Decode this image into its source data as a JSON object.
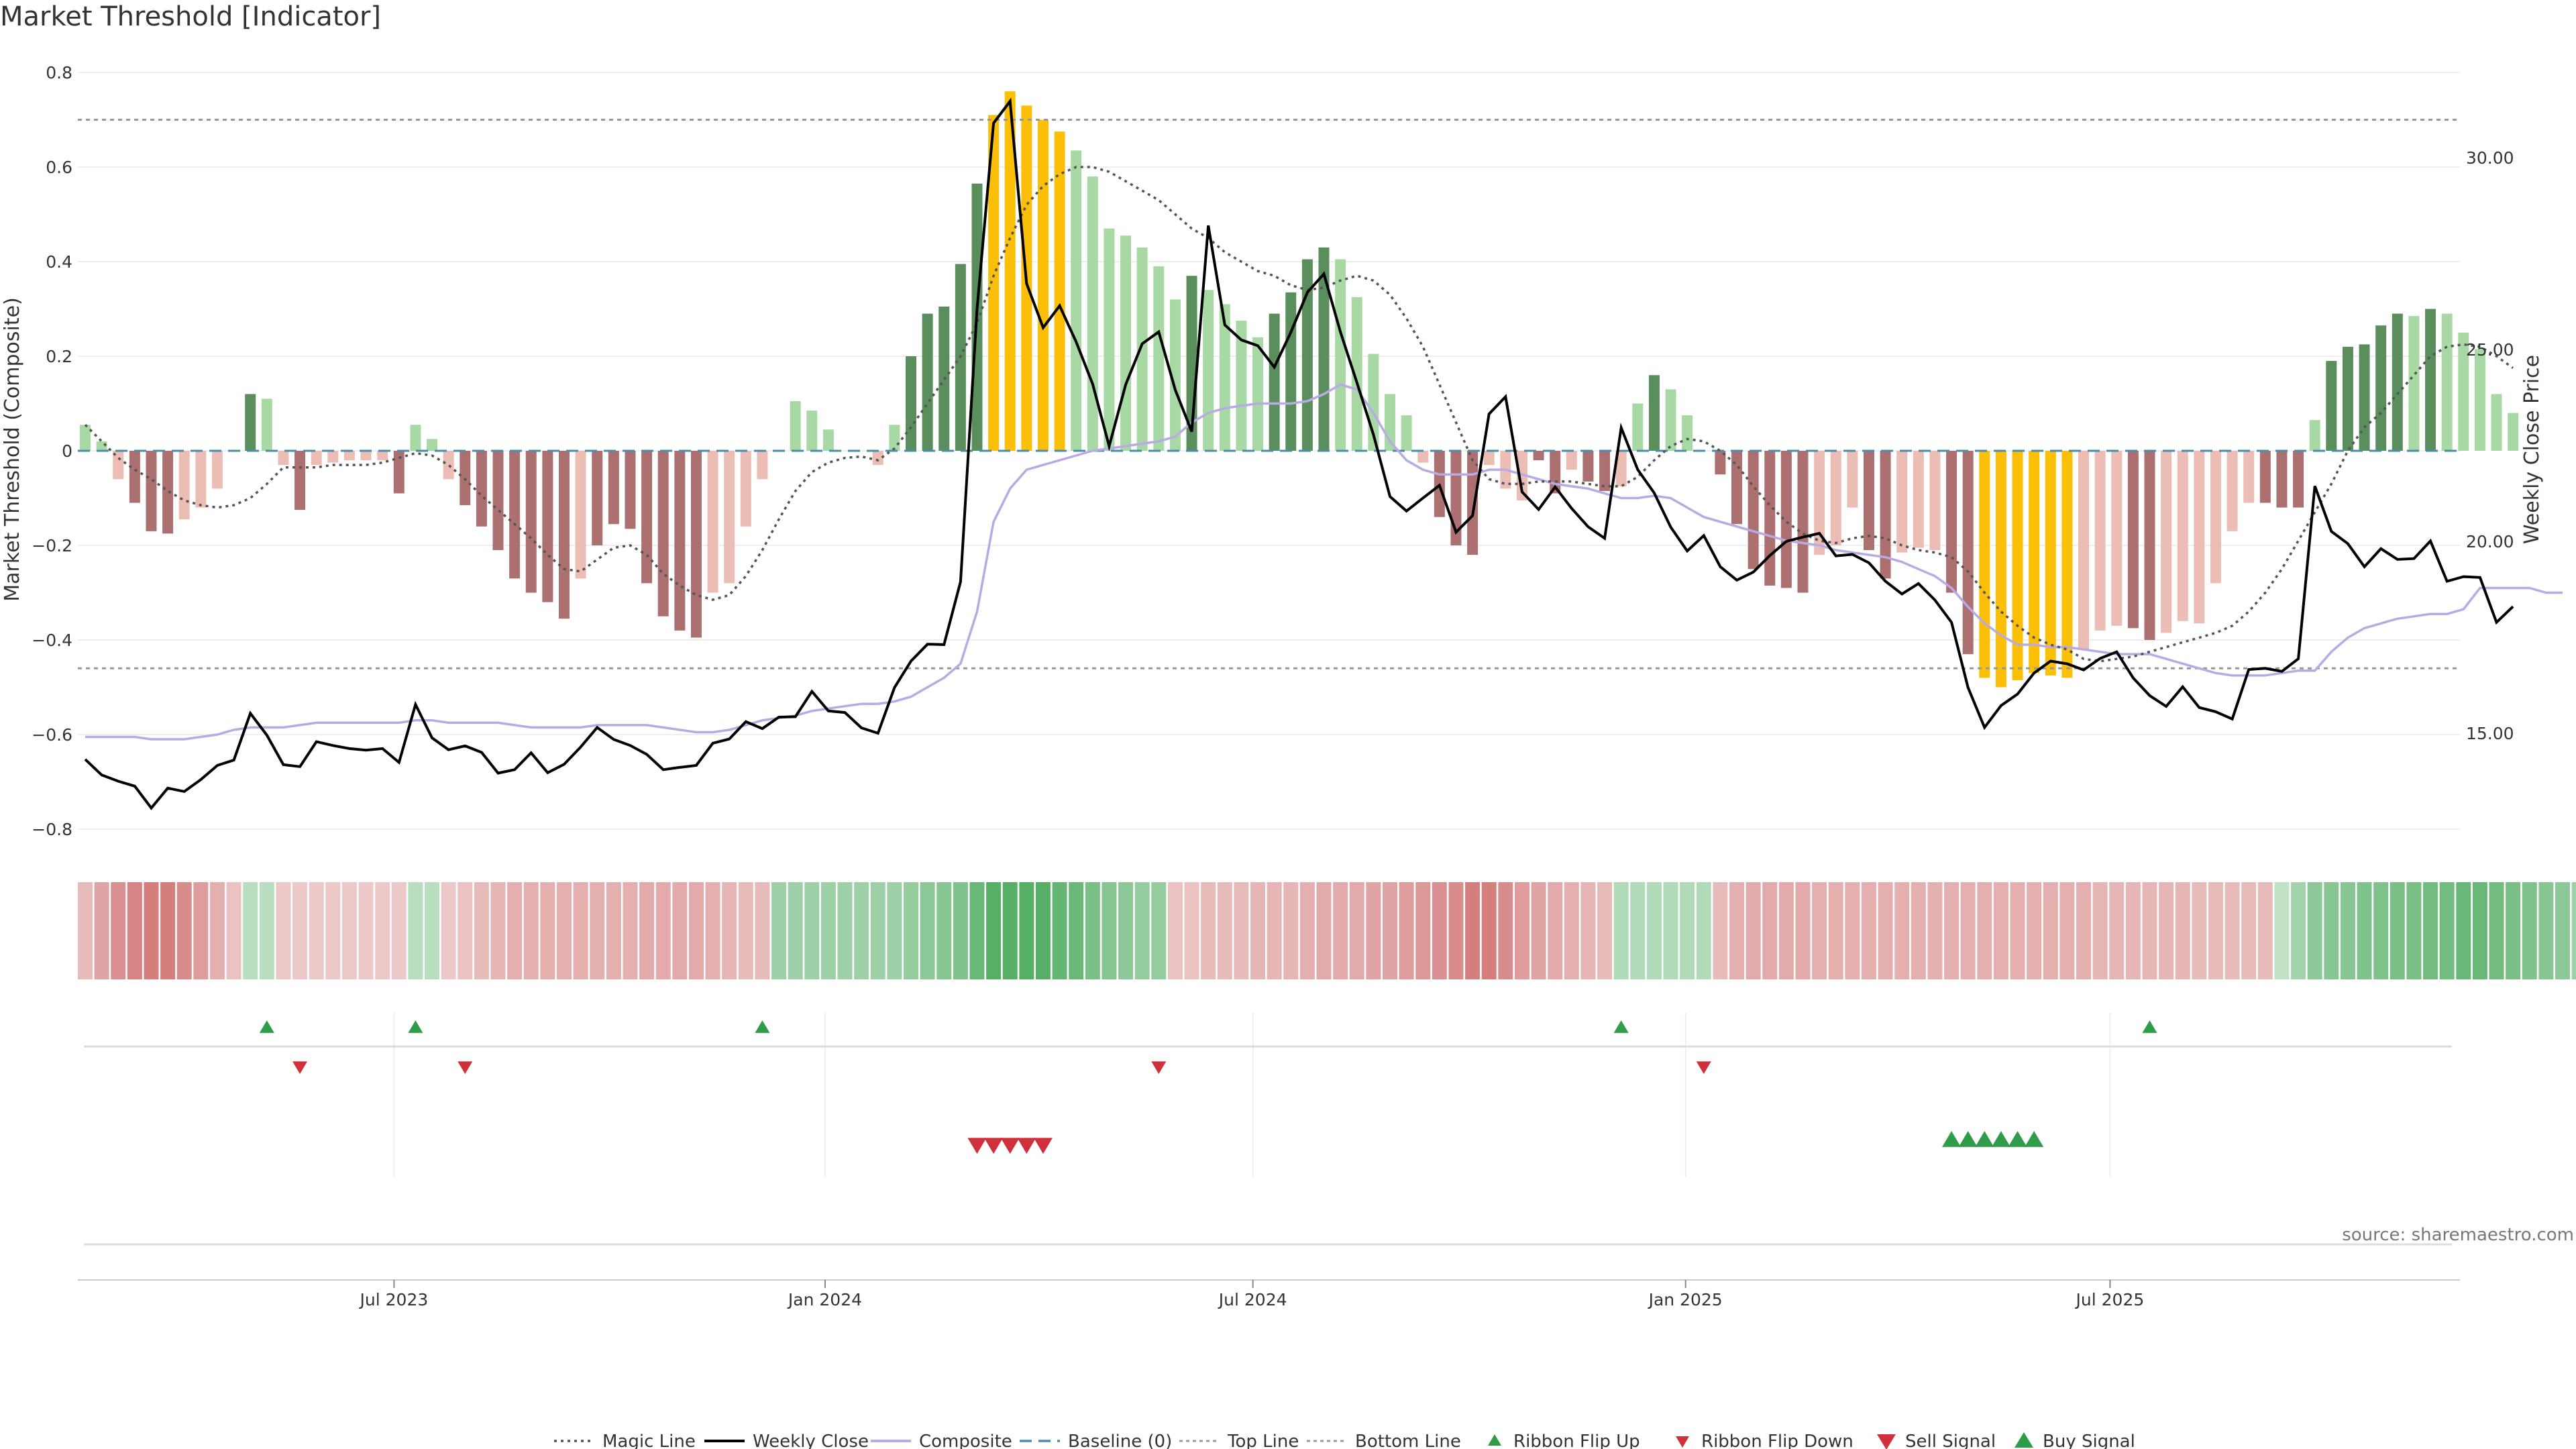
{
  "title": "Market Threshold [Indicator]",
  "source": "source: sharemaestro.com",
  "colors": {
    "strong_pos": "#5a8f5d",
    "weak_pos": "#a8d9a4",
    "strong_neg": "#ac7070",
    "weak_neg": "#ecbdb5",
    "extreme": "#fbbf08",
    "close": "#000000",
    "composite": "#b8abe3",
    "magic": "#555555",
    "baseline": "#4a8bb0",
    "threshold": "#999999",
    "ribbon_pos": "#3ba24d",
    "ribbon_neg": "#c65555",
    "up_marker": "#2e9c48",
    "down_marker": "#d0303a"
  },
  "chart_data": {
    "type": "bar",
    "title": "Market Threshold [Indicator]",
    "ylabel": "Market Threshold (Composite)",
    "y2label": "Weekly Close Price",
    "ylim": [
      -0.84,
      0.8
    ],
    "y2lim": [
      11.7,
      32.1
    ],
    "y_ticks": [
      "0.8",
      "0.6",
      "0.4",
      "0.2",
      "0",
      "−0.2",
      "−0.4",
      "−0.6",
      "−0.8"
    ],
    "y2_ticks": [
      "30.00",
      "25.00",
      "20.00",
      "15.00"
    ],
    "x_ticks": [
      "Jul 2023",
      "Jan 2024",
      "Jul 2024",
      "Jan 2025",
      "Jul 2025"
    ],
    "grid": true,
    "top_line": 0.7,
    "bottom_line": -0.46,
    "baseline": 0,
    "bars": [
      0.055,
      0.02,
      -0.06,
      -0.11,
      -0.17,
      -0.175,
      -0.145,
      -0.12,
      -0.08,
      0,
      0.12,
      0.11,
      -0.03,
      -0.125,
      -0.03,
      -0.025,
      -0.02,
      -0.02,
      -0.02,
      -0.09,
      0.055,
      0.025,
      -0.06,
      -0.115,
      -0.16,
      -0.21,
      -0.27,
      -0.3,
      -0.32,
      -0.355,
      -0.27,
      -0.2,
      -0.155,
      -0.165,
      -0.28,
      -0.35,
      -0.38,
      -0.395,
      -0.3,
      -0.28,
      -0.16,
      -0.06,
      0,
      0.105,
      0.085,
      0.045,
      0,
      0,
      -0.03,
      0.055,
      0.2,
      0.29,
      0.305,
      0.395,
      0.565,
      0.71,
      0.76,
      0.73,
      0.7,
      0.675,
      0.635,
      0.58,
      0.47,
      0.455,
      0.43,
      0.39,
      0.32,
      0.37,
      0.34,
      0.31,
      0.275,
      0.24,
      0.29,
      0.335,
      0.405,
      0.43,
      0.405,
      0.325,
      0.205,
      0.12,
      0.075,
      -0.025,
      -0.14,
      -0.2,
      -0.22,
      -0.03,
      -0.08,
      -0.105,
      -0.02,
      -0.09,
      -0.04,
      -0.065,
      -0.085,
      -0.075,
      0.1,
      0.16,
      0.13,
      0.075,
      0,
      -0.05,
      -0.155,
      -0.25,
      -0.285,
      -0.29,
      -0.3,
      -0.22,
      -0.2,
      -0.12,
      -0.21,
      -0.27,
      -0.215,
      -0.205,
      -0.21,
      -0.3,
      -0.43,
      -0.48,
      -0.5,
      -0.485,
      -0.47,
      -0.475,
      -0.48,
      -0.42,
      -0.38,
      -0.37,
      -0.375,
      -0.4,
      -0.385,
      -0.36,
      -0.365,
      -0.28,
      -0.17,
      -0.11,
      -0.11,
      -0.12,
      -0.12,
      0.065,
      0.19,
      0.22,
      0.225,
      0.265,
      0.29,
      0.285,
      0.3,
      0.29,
      0.25,
      0.215,
      0.12,
      0.08
    ],
    "bar_categories": [
      "wp",
      "wp",
      "wn",
      "sn",
      "sn",
      "sn",
      "wn",
      "wn",
      "wn",
      "wn",
      "sp",
      "wp",
      "wn",
      "sn",
      "wn",
      "wn",
      "wn",
      "wn",
      "wn",
      "sn",
      "wp",
      "wp",
      "wn",
      "sn",
      "sn",
      "sn",
      "sn",
      "sn",
      "sn",
      "sn",
      "wn",
      "sn",
      "sn",
      "sn",
      "sn",
      "sn",
      "sn",
      "sn",
      "wn",
      "wn",
      "wn",
      "wn",
      "wp",
      "wp",
      "wp",
      "wp",
      "wp",
      "wp",
      "wn",
      "wp",
      "sp",
      "sp",
      "sp",
      "sp",
      "sp",
      "ex",
      "ex",
      "ex",
      "ex",
      "ex",
      "wp",
      "wp",
      "wp",
      "wp",
      "wp",
      "wp",
      "wp",
      "sp",
      "wp",
      "wp",
      "wp",
      "wp",
      "sp",
      "sp",
      "sp",
      "sp",
      "wp",
      "wp",
      "wp",
      "wp",
      "wp",
      "wn",
      "sn",
      "sn",
      "sn",
      "wn",
      "wn",
      "wn",
      "sn",
      "sn",
      "wn",
      "sn",
      "sn",
      "wn",
      "wp",
      "sp",
      "wp",
      "wp",
      "wp",
      "sn",
      "sn",
      "sn",
      "sn",
      "sn",
      "sn",
      "wn",
      "wn",
      "wn",
      "sn",
      "sn",
      "wn",
      "wn",
      "wn",
      "sn",
      "sn",
      "ex",
      "ex",
      "ex",
      "ex",
      "ex",
      "ex",
      "wn",
      "wn",
      "wn",
      "sn",
      "sn",
      "wn",
      "wn",
      "wn",
      "wn",
      "wn",
      "wn",
      "sn",
      "sn",
      "sn",
      "wp",
      "sp",
      "sp",
      "sp",
      "sp",
      "sp",
      "wp",
      "sp",
      "wp",
      "wp",
      "wp",
      "wp",
      "wp"
    ],
    "magic_line": [
      0.055,
      0.02,
      -0.015,
      -0.04,
      -0.06,
      -0.085,
      -0.105,
      -0.115,
      -0.12,
      -0.115,
      -0.1,
      -0.07,
      -0.035,
      -0.035,
      -0.035,
      -0.03,
      -0.03,
      -0.03,
      -0.025,
      -0.015,
      -0.005,
      -0.01,
      -0.03,
      -0.06,
      -0.095,
      -0.125,
      -0.155,
      -0.185,
      -0.22,
      -0.25,
      -0.255,
      -0.23,
      -0.205,
      -0.2,
      -0.22,
      -0.26,
      -0.285,
      -0.305,
      -0.315,
      -0.305,
      -0.265,
      -0.21,
      -0.145,
      -0.085,
      -0.045,
      -0.025,
      -0.015,
      -0.012,
      -0.02,
      0.005,
      0.05,
      0.1,
      0.15,
      0.2,
      0.27,
      0.37,
      0.45,
      0.52,
      0.56,
      0.585,
      0.6,
      0.6,
      0.59,
      0.57,
      0.55,
      0.53,
      0.5,
      0.47,
      0.45,
      0.42,
      0.4,
      0.38,
      0.37,
      0.35,
      0.34,
      0.345,
      0.36,
      0.37,
      0.36,
      0.33,
      0.28,
      0.22,
      0.14,
      0.06,
      -0.02,
      -0.06,
      -0.07,
      -0.07,
      -0.065,
      -0.065,
      -0.065,
      -0.07,
      -0.075,
      -0.075,
      -0.055,
      -0.02,
      0.01,
      0.025,
      0.02,
      0,
      -0.03,
      -0.075,
      -0.115,
      -0.15,
      -0.175,
      -0.19,
      -0.195,
      -0.185,
      -0.18,
      -0.185,
      -0.2,
      -0.21,
      -0.215,
      -0.225,
      -0.255,
      -0.3,
      -0.34,
      -0.37,
      -0.395,
      -0.41,
      -0.42,
      -0.44,
      -0.445,
      -0.44,
      -0.435,
      -0.425,
      -0.415,
      -0.405,
      -0.395,
      -0.385,
      -0.37,
      -0.34,
      -0.3,
      -0.25,
      -0.19,
      -0.13,
      -0.07,
      0,
      0.05,
      0.08,
      0.12,
      0.16,
      0.2,
      0.22,
      0.225,
      0.22,
      0.2,
      0.175
    ],
    "weekly_close": [
      14.32,
      13.91,
      13.75,
      13.62,
      13.05,
      13.57,
      13.48,
      13.79,
      14.16,
      14.3,
      15.52,
      14.95,
      14.18,
      14.13,
      14.78,
      14.68,
      14.6,
      14.56,
      14.6,
      14.24,
      15.75,
      14.88,
      14.57,
      14.67,
      14.5,
      13.96,
      14.05,
      14.49,
      13.97,
      14.19,
      14.64,
      15.15,
      14.84,
      14.68,
      14.45,
      14.05,
      14.11,
      14.16,
      14.74,
      14.85,
      15.3,
      15.12,
      15.42,
      15.43,
      16.09,
      15.58,
      15.54,
      15.14,
      15.0,
      16.19,
      16.88,
      17.32,
      17.31,
      18.95,
      26.06,
      30.9,
      31.47,
      26.72,
      25.57,
      26.14,
      25.2,
      24.1,
      22.48,
      24.09,
      25.15,
      25.46,
      23.95,
      22.86,
      28.23,
      25.64,
      25.25,
      25.1,
      24.54,
      25.45,
      26.49,
      26.97,
      25.46,
      24.14,
      22.78,
      21.17,
      20.79,
      21.13,
      21.46,
      20.24,
      20.67,
      23.32,
      23.77,
      21.29,
      20.83,
      21.42,
      20.86,
      20.38,
      20.08,
      22.96,
      21.87,
      21.26,
      20.37,
      19.75,
      20.15,
      19.34,
      18.99,
      19.2,
      19.63,
      20.0,
      20.11,
      20.21,
      19.62,
      19.66,
      19.44,
      18.96,
      18.63,
      18.9,
      18.47,
      17.89,
      16.19,
      15.15,
      15.72,
      16.02,
      16.57,
      16.88,
      16.81,
      16.65,
      16.95,
      17.12,
      16.44,
      15.98,
      15.7,
      16.21,
      15.67,
      15.56,
      15.37,
      16.66,
      16.69,
      16.61,
      16.94,
      21.44,
      20.26,
      19.94,
      19.34,
      19.81,
      19.53,
      19.55,
      20.01,
      18.96,
      19.08,
      19.06,
      17.89,
      18.3
    ],
    "composite": [
      -0.605,
      -0.605,
      -0.605,
      -0.605,
      -0.61,
      -0.61,
      -0.61,
      -0.605,
      -0.6,
      -0.59,
      -0.585,
      -0.585,
      -0.585,
      -0.58,
      -0.575,
      -0.575,
      -0.575,
      -0.575,
      -0.575,
      -0.575,
      -0.57,
      -0.57,
      -0.575,
      -0.575,
      -0.575,
      -0.575,
      -0.58,
      -0.585,
      -0.585,
      -0.585,
      -0.585,
      -0.58,
      -0.58,
      -0.58,
      -0.58,
      -0.585,
      -0.59,
      -0.595,
      -0.595,
      -0.59,
      -0.58,
      -0.57,
      -0.565,
      -0.56,
      -0.55,
      -0.545,
      -0.54,
      -0.535,
      -0.535,
      -0.53,
      -0.52,
      -0.5,
      -0.48,
      -0.45,
      -0.34,
      -0.15,
      -0.08,
      -0.04,
      -0.03,
      -0.02,
      -0.01,
      0,
      0.005,
      0.01,
      0.015,
      0.02,
      0.03,
      0.06,
      0.08,
      0.09,
      0.095,
      0.1,
      0.1,
      0.1,
      0.105,
      0.12,
      0.14,
      0.13,
      0.08,
      0.02,
      -0.02,
      -0.04,
      -0.05,
      -0.05,
      -0.05,
      -0.04,
      -0.04,
      -0.05,
      -0.06,
      -0.07,
      -0.075,
      -0.08,
      -0.09,
      -0.1,
      -0.1,
      -0.095,
      -0.1,
      -0.12,
      -0.14,
      -0.15,
      -0.16,
      -0.17,
      -0.18,
      -0.19,
      -0.195,
      -0.2,
      -0.21,
      -0.215,
      -0.22,
      -0.225,
      -0.235,
      -0.25,
      -0.265,
      -0.29,
      -0.33,
      -0.365,
      -0.39,
      -0.41,
      -0.41,
      -0.415,
      -0.415,
      -0.42,
      -0.425,
      -0.43,
      -0.43,
      -0.43,
      -0.44,
      -0.45,
      -0.46,
      -0.47,
      -0.475,
      -0.475,
      -0.475,
      -0.47,
      -0.465,
      -0.465,
      -0.425,
      -0.395,
      -0.375,
      -0.365,
      -0.355,
      -0.35,
      -0.345,
      -0.345,
      -0.335,
      -0.29,
      -0.29,
      -0.29,
      -0.29,
      -0.3,
      -0.3
    ],
    "ribbon_levels": [
      -0.3,
      -0.5,
      -0.65,
      -0.75,
      -0.8,
      -0.8,
      -0.7,
      -0.55,
      -0.4,
      -0.25,
      0.25,
      0.25,
      -0.2,
      -0.2,
      -0.2,
      -0.2,
      -0.2,
      -0.2,
      -0.2,
      -0.2,
      0.25,
      0.25,
      -0.2,
      -0.25,
      -0.3,
      -0.35,
      -0.4,
      -0.4,
      -0.4,
      -0.4,
      -0.4,
      -0.4,
      -0.4,
      -0.4,
      -0.45,
      -0.45,
      -0.45,
      -0.45,
      -0.4,
      -0.35,
      -0.3,
      -0.3,
      0.45,
      0.45,
      0.45,
      0.45,
      0.45,
      0.45,
      0.45,
      0.45,
      0.5,
      0.55,
      0.6,
      0.65,
      0.8,
      0.95,
      0.95,
      0.95,
      0.95,
      0.85,
      0.8,
      0.7,
      0.6,
      0.55,
      0.5,
      0.5,
      -0.25,
      -0.25,
      -0.3,
      -0.3,
      -0.3,
      -0.35,
      -0.35,
      -0.35,
      -0.4,
      -0.45,
      -0.45,
      -0.45,
      -0.5,
      -0.5,
      -0.55,
      -0.6,
      -0.65,
      -0.7,
      -0.8,
      -0.8,
      -0.7,
      -0.55,
      -0.5,
      -0.45,
      -0.4,
      -0.35,
      -0.3,
      0.3,
      0.3,
      0.3,
      0.3,
      0.3,
      0.3,
      -0.3,
      -0.4,
      -0.45,
      -0.45,
      -0.45,
      -0.45,
      -0.4,
      -0.4,
      -0.4,
      -0.4,
      -0.4,
      -0.4,
      -0.4,
      -0.4,
      -0.4,
      -0.4,
      -0.4,
      -0.4,
      -0.4,
      -0.4,
      -0.4,
      -0.4,
      -0.4,
      -0.35,
      -0.35,
      -0.35,
      -0.35,
      -0.35,
      -0.35,
      -0.3,
      -0.3,
      -0.3,
      -0.3,
      -0.3,
      0.2,
      0.4,
      0.55,
      0.6,
      0.6,
      0.65,
      0.65,
      0.7,
      0.7,
      0.75,
      0.75,
      0.8,
      0.8,
      0.75,
      0.7,
      0.65,
      0.6,
      0.55,
      0.45,
      0.4
    ],
    "ribbon_flip_up": [
      11,
      20,
      41,
      93,
      125
    ],
    "ribbon_flip_down": [
      13,
      23,
      65,
      98
    ],
    "sell_signals": [
      54,
      55,
      56,
      57,
      58
    ],
    "buy_signals": [
      113,
      114,
      115,
      116,
      117,
      118
    ]
  },
  "legend": [
    {
      "label": "Magic Line",
      "style": "dotted-line"
    },
    {
      "label": "Weekly Close",
      "style": "solid-line"
    },
    {
      "label": "Composite",
      "style": "lavender-line"
    },
    {
      "label": "Baseline (0)",
      "style": "dashed-line"
    },
    {
      "label": "Top Line",
      "style": "grey-dotted-line"
    },
    {
      "label": "Bottom Line",
      "style": "grey-dotted-line"
    },
    {
      "label": "Ribbon Flip Up",
      "style": "green-triangle-up"
    },
    {
      "label": "Ribbon Flip Down",
      "style": "red-triangle-down"
    },
    {
      "label": "Sell Signal",
      "style": "big-red-triangle-down"
    },
    {
      "label": "Buy Signal",
      "style": "big-green-triangle-up"
    }
  ]
}
